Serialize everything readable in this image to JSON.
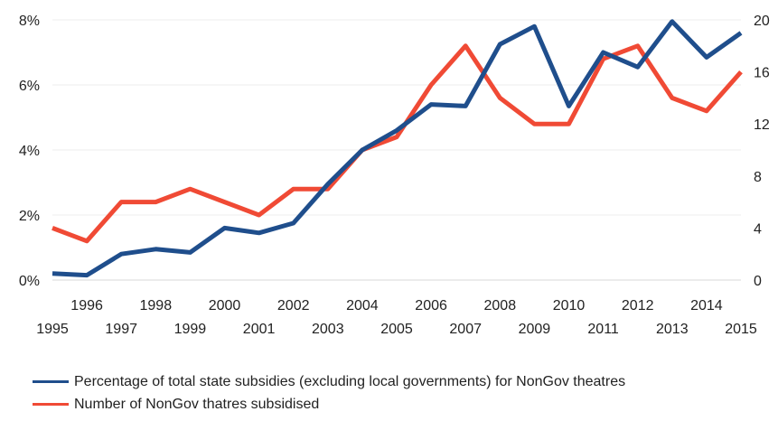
{
  "chart_data": {
    "type": "line",
    "x": [
      1995,
      1996,
      1997,
      1998,
      1999,
      2000,
      2001,
      2002,
      2003,
      2004,
      2005,
      2006,
      2007,
      2008,
      2009,
      2010,
      2011,
      2012,
      2013,
      2014,
      2015
    ],
    "x_tick_labels": [
      "1995",
      "1996",
      "1997",
      "1998",
      "1999",
      "2000",
      "2001",
      "2002",
      "2003",
      "2004",
      "2005",
      "2006",
      "2007",
      "2008",
      "2009",
      "2010",
      "2011",
      "2012",
      "2013",
      "2014",
      "2015"
    ],
    "y_left": {
      "ylim": [
        0,
        8
      ],
      "ticks": [
        0,
        2,
        4,
        6,
        8
      ],
      "tick_labels": [
        "0%",
        "2%",
        "4%",
        "6%",
        "8%"
      ]
    },
    "y_right": {
      "ylim": [
        0,
        20
      ],
      "ticks": [
        0,
        4,
        8,
        12,
        16,
        20
      ],
      "tick_labels": [
        "0",
        "4",
        "8",
        "12",
        "16",
        "20"
      ]
    },
    "grid": "horizontal",
    "legend_position": "bottom",
    "series": [
      {
        "name": "Percentage of total state subsidies (excluding local governments) for NonGov theatres",
        "axis": "left",
        "color": "#1f4e8c",
        "values": [
          0.2,
          0.15,
          0.8,
          0.95,
          0.85,
          1.6,
          1.45,
          1.75,
          2.95,
          4.0,
          4.6,
          5.4,
          5.35,
          7.25,
          7.8,
          5.35,
          7.0,
          6.55,
          7.95,
          6.85,
          7.6
        ]
      },
      {
        "name": "Number of NonGov thatres subsidised",
        "axis": "right",
        "color": "#f04a35",
        "values": [
          4,
          3,
          6,
          6,
          7,
          6,
          5,
          7,
          7,
          10,
          11,
          15,
          18,
          14,
          12,
          12,
          17,
          18,
          14,
          13,
          16
        ]
      }
    ]
  }
}
